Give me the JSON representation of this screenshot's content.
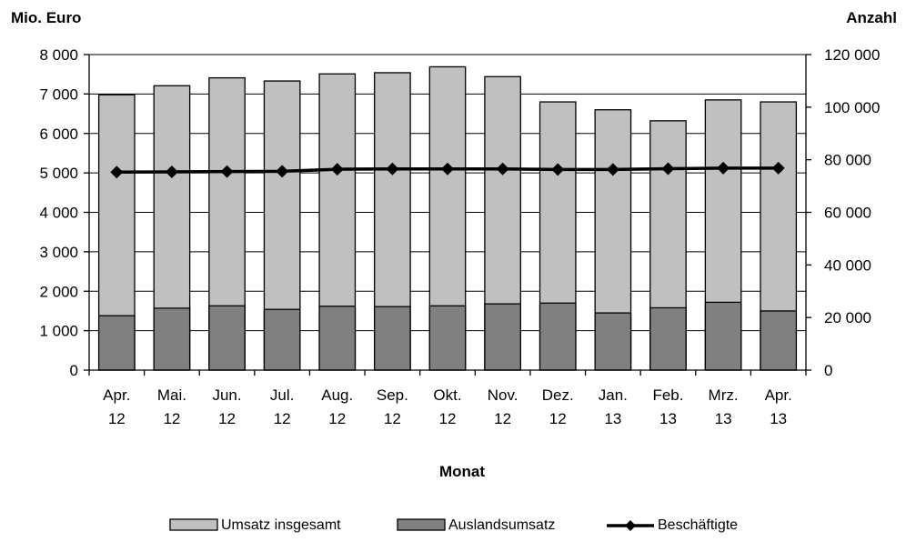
{
  "chart_data": {
    "type": "bar",
    "categories": [
      [
        "Apr.",
        "12"
      ],
      [
        "Mai.",
        "12"
      ],
      [
        "Jun.",
        "12"
      ],
      [
        "Jul.",
        "12"
      ],
      [
        "Aug.",
        "12"
      ],
      [
        "Sep.",
        "12"
      ],
      [
        "Okt.",
        "12"
      ],
      [
        "Nov.",
        "12"
      ],
      [
        "Dez.",
        "12"
      ],
      [
        "Jan.",
        "13"
      ],
      [
        "Feb.",
        "13"
      ],
      [
        "Mrz.",
        "13"
      ],
      [
        "Apr.",
        "13"
      ]
    ],
    "xlabel": "Monat",
    "ylabel_left": "Mio. Euro",
    "ylabel_right": "Anzahl",
    "ylim_left": [
      0,
      8000
    ],
    "ylim_right": [
      0,
      120000
    ],
    "yticks_left": [
      "0",
      "1 000",
      "2 000",
      "3 000",
      "4 000",
      "5 000",
      "6 000",
      "7 000",
      "8 000"
    ],
    "yticks_right": [
      "0",
      "20 000",
      "40 000",
      "60 000",
      "80 000",
      "100 000",
      "120 000"
    ],
    "grid": "horizontal",
    "legend_position": "bottom",
    "series": [
      {
        "name": "Umsatz insgesamt",
        "type": "bar",
        "axis": "left",
        "color": "#c0c0c0",
        "values": [
          6980,
          7210,
          7410,
          7330,
          7510,
          7540,
          7690,
          7440,
          6800,
          6600,
          6320,
          6850,
          6800
        ]
      },
      {
        "name": "Auslandsumsatz",
        "type": "bar",
        "axis": "left",
        "color": "#808080",
        "values": [
          1380,
          1570,
          1630,
          1540,
          1620,
          1610,
          1630,
          1680,
          1700,
          1450,
          1580,
          1720,
          1500
        ]
      },
      {
        "name": "Beschäftigte",
        "type": "line",
        "axis": "right",
        "color": "#000000",
        "values": [
          75300,
          75400,
          75500,
          75600,
          76400,
          76500,
          76500,
          76500,
          76300,
          76300,
          76600,
          76800,
          76800
        ]
      }
    ]
  }
}
